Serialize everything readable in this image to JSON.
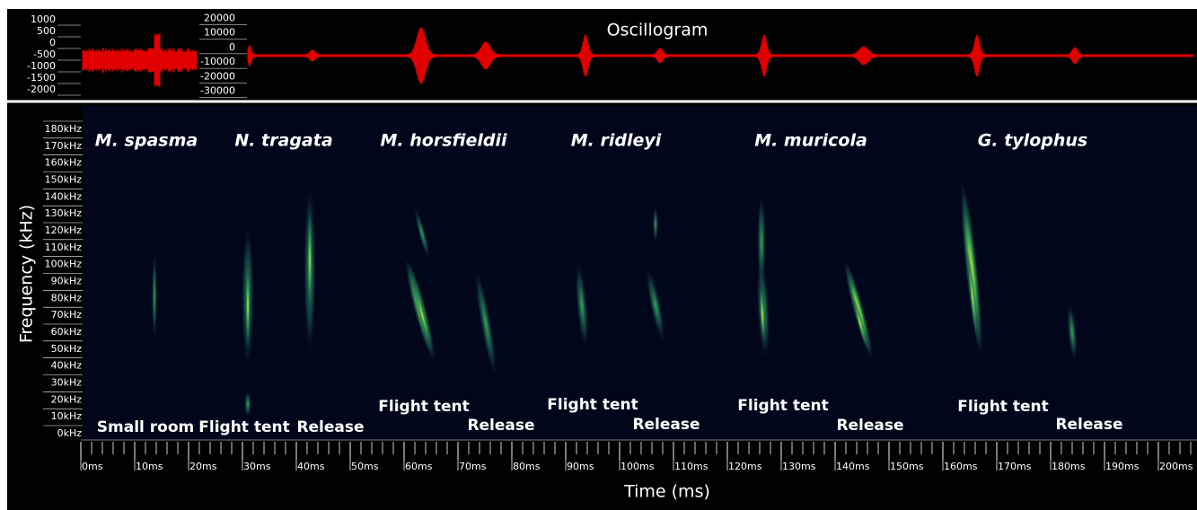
{
  "chart_data": [
    {
      "type": "oscillogram",
      "title": "Oscillogram",
      "color": "#e00000",
      "ylim": [
        -2500,
        1500
      ],
      "yticks": [
        1000,
        500,
        0,
        -500,
        -1000,
        -1500,
        -2000
      ],
      "y2lim": [
        -37000,
        27000
      ],
      "y2ticks": [
        20000,
        10000,
        0,
        -10000,
        -20000,
        -30000
      ]
    },
    {
      "type": "spectrogram",
      "xlabel": "Time (ms)",
      "ylabel": "Frequency (kHz)",
      "xlim": [
        0,
        200
      ],
      "ylim": [
        0,
        180
      ],
      "xticks": [
        {
          "value": 0,
          "label": "0ms"
        },
        {
          "value": 10,
          "label": "10ms"
        },
        {
          "value": 20,
          "label": "20ms"
        },
        {
          "value": 30,
          "label": "30ms"
        },
        {
          "value": 40,
          "label": "40ms"
        },
        {
          "value": 50,
          "label": "50ms"
        },
        {
          "value": 60,
          "label": "60ms"
        },
        {
          "value": 70,
          "label": "70ms"
        },
        {
          "value": 80,
          "label": "80ms"
        },
        {
          "value": 90,
          "label": "90ms"
        },
        {
          "value": 100,
          "label": "100ms"
        },
        {
          "value": 110,
          "label": "110ms"
        },
        {
          "value": 120,
          "label": "120ms"
        },
        {
          "value": 130,
          "label": "130ms"
        },
        {
          "value": 140,
          "label": "140ms"
        },
        {
          "value": 150,
          "label": "150ms"
        },
        {
          "value": 160,
          "label": "160ms"
        },
        {
          "value": 170,
          "label": "170ms"
        },
        {
          "value": 180,
          "label": "180ms"
        },
        {
          "value": 190,
          "label": "190ms"
        },
        {
          "value": 200,
          "label": "200ms"
        }
      ],
      "yticks": [
        {
          "value": 0,
          "label": "0kHz"
        },
        {
          "value": 10,
          "label": "10kHz"
        },
        {
          "value": 20,
          "label": "20kHz"
        },
        {
          "value": 30,
          "label": "30kHz"
        },
        {
          "value": 40,
          "label": "40kHz"
        },
        {
          "value": 50,
          "label": "50kHz"
        },
        {
          "value": 60,
          "label": "60kHz"
        },
        {
          "value": 70,
          "label": "70kHz"
        },
        {
          "value": 80,
          "label": "80kHz"
        },
        {
          "value": 90,
          "label": "90kHz"
        },
        {
          "value": 100,
          "label": "100kHz"
        },
        {
          "value": 110,
          "label": "110kHz"
        },
        {
          "value": 120,
          "label": "120kHz"
        },
        {
          "value": 130,
          "label": "130kHz"
        },
        {
          "value": 140,
          "label": "140kHz"
        },
        {
          "value": 150,
          "label": "150kHz"
        },
        {
          "value": 160,
          "label": "160kHz"
        },
        {
          "value": 170,
          "label": "170kHz"
        },
        {
          "value": 180,
          "label": "180kHz"
        }
      ],
      "species": [
        "M. spasma",
        "N. tragata",
        "M. horsfieldii",
        "M. ridleyi",
        "M. muricola",
        "G. tylophus"
      ],
      "contexts": [
        "Small room",
        "Flight tent",
        "Release",
        "Flight tent",
        "Release",
        "Flight tent",
        "Release",
        "Flight tent",
        "Release",
        "Flight tent",
        "Release"
      ]
    }
  ]
}
